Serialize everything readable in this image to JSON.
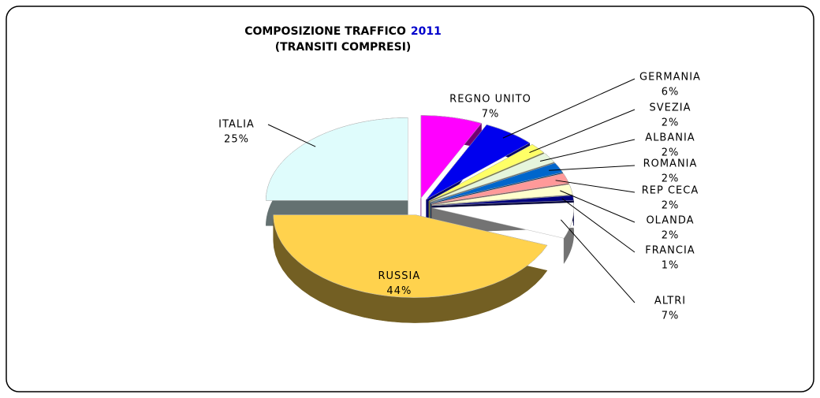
{
  "chart_data": {
    "type": "pie",
    "title": [
      "COMPOSIZIONE TRAFFICO",
      "2011"
    ],
    "subtitle": "(TRANSITI COMPRESI)",
    "categories": [
      "ITALIA",
      "REGNO UNITO",
      "GERMANIA",
      "SVEZIA",
      "ALBANIA",
      "ROMANIA",
      "REP CECA",
      "OLANDA",
      "FRANCIA",
      "ALTRI",
      "RUSSIA"
    ],
    "values": [
      25,
      7,
      6,
      2,
      2,
      2,
      2,
      2,
      1,
      7,
      44
    ],
    "value_labels": [
      "25%",
      "7%",
      "6%",
      "2%",
      "2%",
      "2%",
      "2%",
      "2%",
      "1%",
      "7%",
      "44%"
    ],
    "colors": [
      "#dffcfc",
      "#ff00ff",
      "#0000ee",
      "#ffff66",
      "#e6f5dc",
      "#0066cc",
      "#ff9999",
      "#ffffcc",
      "#000080",
      "#ffffff",
      "#ffd24d"
    ]
  }
}
